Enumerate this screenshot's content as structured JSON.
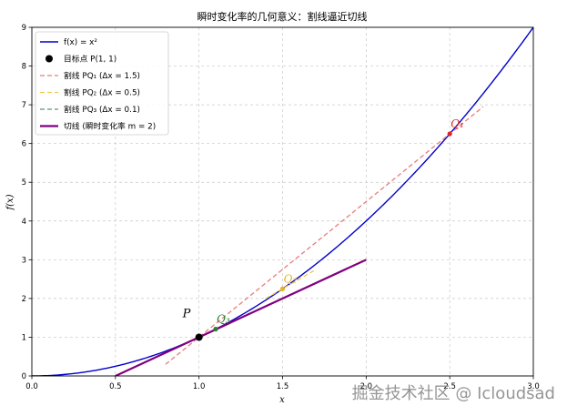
{
  "chart_data": {
    "type": "line",
    "title": "瞬时变化率的几何意义：割线逼近切线",
    "xlabel": "x",
    "ylabel": "f(x)",
    "xlim": [
      0,
      3
    ],
    "ylim": [
      0,
      9
    ],
    "xticks": [
      "0.0",
      "0.5",
      "1.0",
      "1.5",
      "2.0",
      "2.5",
      "3.0"
    ],
    "yticks": [
      "0",
      "1",
      "2",
      "3",
      "4",
      "5",
      "6",
      "7",
      "8",
      "9"
    ],
    "grid": true,
    "legend_position": "top-left",
    "curve": {
      "label": "f(x) = x²",
      "color": "#0000cc",
      "x_range": [
        0,
        3
      ]
    },
    "target_point": {
      "label": "目标点 P(1, 1)",
      "x": 1,
      "y": 1,
      "annotation": "P",
      "color": "#000000"
    },
    "secants": [
      {
        "label": "割线 PQ₁ (Δx = 1.5)",
        "dx": 1.5,
        "x_range": [
          0.8,
          2.7
        ],
        "color": "#e87c7c",
        "point_label": "Q₁",
        "point_color": "#d62728"
      },
      {
        "label": "割线 PQ₂ (Δx = 0.5)",
        "dx": 0.5,
        "x_range": [
          1.4,
          1.7
        ],
        "color": "#f0c84b",
        "point_label": "Q₂",
        "point_color": "#e6b422"
      },
      {
        "label": "割线 PQ₃ (Δx = 0.1)",
        "dx": 0.1,
        "x_range": [
          1.05,
          1.2
        ],
        "color": "#5a9a70",
        "point_label": "Q₃",
        "point_color": "#2e7d32"
      }
    ],
    "tangent": {
      "label": "切线 (瞬时变化率 m = 2)",
      "slope": 2,
      "x_range": [
        0.5,
        2.0
      ],
      "color": "#800080"
    }
  },
  "watermark": "掘金技术社区 @ Icloudsad"
}
